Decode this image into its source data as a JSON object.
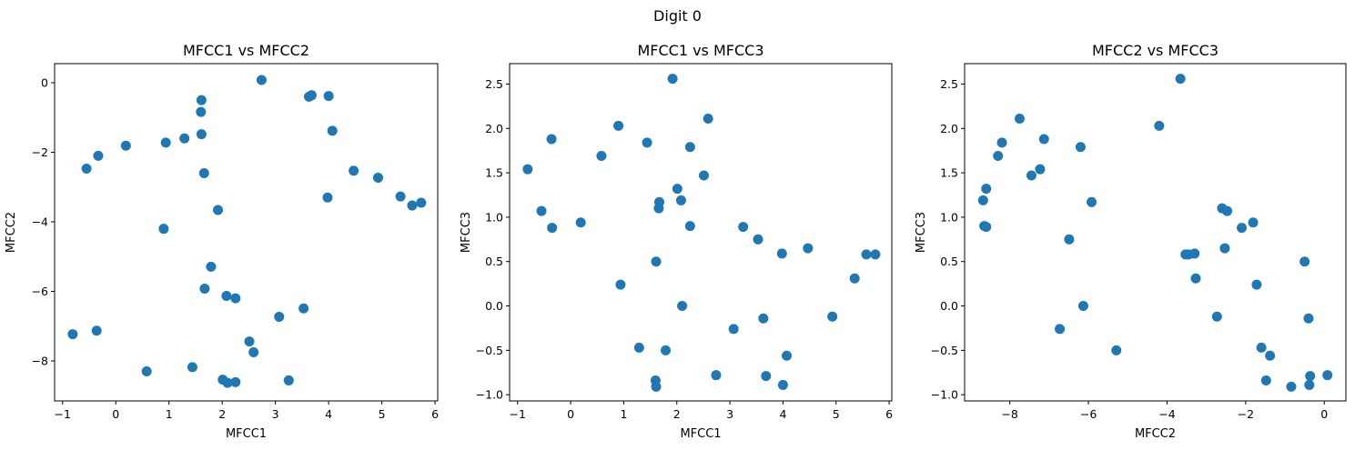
{
  "figure": {
    "suptitle": "Digit 0"
  },
  "colors": {
    "marker": "#1f77b4"
  },
  "chart_data": [
    {
      "type": "scatter",
      "title": "MFCC1 vs MFCC2",
      "xlabel": "MFCC1",
      "ylabel": "MFCC2",
      "xlim": [
        -1.15,
        6.05
      ],
      "ylim": [
        -9.15,
        0.55
      ],
      "xticks": [
        -1,
        0,
        1,
        2,
        3,
        4,
        5,
        6
      ],
      "yticks": [
        0,
        -2,
        -4,
        -6,
        -8
      ],
      "grid": false,
      "points": [
        {
          "x": -0.81,
          "y": -7.23
        },
        {
          "x": -0.55,
          "y": -2.47
        },
        {
          "x": -0.36,
          "y": -7.13
        },
        {
          "x": -0.33,
          "y": -2.1
        },
        {
          "x": 0.19,
          "y": -1.81
        },
        {
          "x": 0.58,
          "y": -8.3
        },
        {
          "x": 0.9,
          "y": -4.2
        },
        {
          "x": 0.94,
          "y": -1.72
        },
        {
          "x": 1.29,
          "y": -1.6
        },
        {
          "x": 1.44,
          "y": -8.18
        },
        {
          "x": 1.6,
          "y": -0.84
        },
        {
          "x": 1.61,
          "y": -0.5
        },
        {
          "x": 1.61,
          "y": -1.48
        },
        {
          "x": 1.66,
          "y": -2.6
        },
        {
          "x": 1.67,
          "y": -5.92
        },
        {
          "x": 1.79,
          "y": -5.29
        },
        {
          "x": 1.92,
          "y": -3.66
        },
        {
          "x": 2.01,
          "y": -8.54
        },
        {
          "x": 2.08,
          "y": -6.13
        },
        {
          "x": 2.1,
          "y": -8.63
        },
        {
          "x": 2.25,
          "y": -6.2
        },
        {
          "x": 2.25,
          "y": -8.61
        },
        {
          "x": 2.51,
          "y": -7.44
        },
        {
          "x": 2.59,
          "y": -7.75
        },
        {
          "x": 2.74,
          "y": 0.08
        },
        {
          "x": 3.07,
          "y": -6.73
        },
        {
          "x": 3.25,
          "y": -8.56
        },
        {
          "x": 3.53,
          "y": -6.49
        },
        {
          "x": 3.63,
          "y": -0.4
        },
        {
          "x": 3.68,
          "y": -0.36
        },
        {
          "x": 3.98,
          "y": -3.3
        },
        {
          "x": 4.0,
          "y": -0.38
        },
        {
          "x": 4.07,
          "y": -1.38
        },
        {
          "x": 4.47,
          "y": -2.53
        },
        {
          "x": 4.93,
          "y": -2.73
        },
        {
          "x": 5.35,
          "y": -3.27
        },
        {
          "x": 5.57,
          "y": -3.53
        },
        {
          "x": 5.74,
          "y": -3.45
        }
      ]
    },
    {
      "type": "scatter",
      "title": "MFCC1 vs MFCC3",
      "xlabel": "MFCC1",
      "ylabel": "MFCC3",
      "xlim": [
        -1.15,
        6.05
      ],
      "ylim": [
        -1.07,
        2.73
      ],
      "xticks": [
        -1,
        0,
        1,
        2,
        3,
        4,
        5,
        6
      ],
      "yticks": [
        2.5,
        2.0,
        1.5,
        1.0,
        0.5,
        0.0,
        -0.5,
        -1.0
      ],
      "grid": false,
      "points": [
        {
          "x": -0.81,
          "y": 1.54
        },
        {
          "x": -0.55,
          "y": 1.07
        },
        {
          "x": -0.36,
          "y": 1.88
        },
        {
          "x": -0.35,
          "y": 0.88
        },
        {
          "x": 0.19,
          "y": 0.94
        },
        {
          "x": 0.58,
          "y": 1.69
        },
        {
          "x": 0.9,
          "y": 2.03
        },
        {
          "x": 0.94,
          "y": 0.24
        },
        {
          "x": 1.29,
          "y": -0.47
        },
        {
          "x": 1.44,
          "y": 1.84
        },
        {
          "x": 1.6,
          "y": -0.84
        },
        {
          "x": 1.61,
          "y": -0.91
        },
        {
          "x": 1.61,
          "y": 0.5
        },
        {
          "x": 1.66,
          "y": 1.1
        },
        {
          "x": 1.67,
          "y": 1.17
        },
        {
          "x": 1.79,
          "y": -0.5
        },
        {
          "x": 1.92,
          "y": 2.56
        },
        {
          "x": 2.01,
          "y": 1.32
        },
        {
          "x": 2.08,
          "y": 1.19
        },
        {
          "x": 2.1,
          "y": 0.0
        },
        {
          "x": 2.25,
          "y": 1.79
        },
        {
          "x": 2.25,
          "y": 0.9
        },
        {
          "x": 2.51,
          "y": 1.47
        },
        {
          "x": 2.59,
          "y": 2.11
        },
        {
          "x": 2.74,
          "y": -0.78
        },
        {
          "x": 3.07,
          "y": -0.26
        },
        {
          "x": 3.25,
          "y": 0.89
        },
        {
          "x": 3.53,
          "y": 0.75
        },
        {
          "x": 3.63,
          "y": -0.14
        },
        {
          "x": 3.68,
          "y": -0.79
        },
        {
          "x": 3.98,
          "y": 0.59
        },
        {
          "x": 4.0,
          "y": -0.89
        },
        {
          "x": 4.07,
          "y": -0.56
        },
        {
          "x": 4.47,
          "y": 0.65
        },
        {
          "x": 4.93,
          "y": -0.12
        },
        {
          "x": 5.35,
          "y": 0.31
        },
        {
          "x": 5.57,
          "y": 0.58
        },
        {
          "x": 5.74,
          "y": 0.58
        }
      ]
    },
    {
      "type": "scatter",
      "title": "MFCC2 vs MFCC3",
      "xlabel": "MFCC2",
      "ylabel": "MFCC3",
      "xlim": [
        -9.15,
        0.55
      ],
      "ylim": [
        -1.07,
        2.73
      ],
      "xticks": [
        -8,
        -6,
        -4,
        -2,
        0
      ],
      "yticks": [
        2.5,
        2.0,
        1.5,
        1.0,
        0.5,
        0.0,
        -0.5,
        -1.0
      ],
      "grid": false,
      "points": [
        {
          "x": -8.68,
          "y": 1.19
        },
        {
          "x": -8.65,
          "y": 0.9
        },
        {
          "x": -8.6,
          "y": 0.89
        },
        {
          "x": -8.6,
          "y": 1.32
        },
        {
          "x": -8.3,
          "y": 1.69
        },
        {
          "x": -8.2,
          "y": 1.84
        },
        {
          "x": -7.75,
          "y": 2.11
        },
        {
          "x": -7.45,
          "y": 1.47
        },
        {
          "x": -7.23,
          "y": 1.54
        },
        {
          "x": -7.13,
          "y": 1.88
        },
        {
          "x": -6.73,
          "y": -0.26
        },
        {
          "x": -6.49,
          "y": 0.75
        },
        {
          "x": -6.2,
          "y": 1.79
        },
        {
          "x": -6.13,
          "y": 0.0
        },
        {
          "x": -5.92,
          "y": 1.17
        },
        {
          "x": -5.29,
          "y": -0.5
        },
        {
          "x": -4.2,
          "y": 2.03
        },
        {
          "x": -3.66,
          "y": 2.56
        },
        {
          "x": -3.53,
          "y": 0.58
        },
        {
          "x": -3.45,
          "y": 0.58
        },
        {
          "x": -3.3,
          "y": 0.59
        },
        {
          "x": -3.27,
          "y": 0.31
        },
        {
          "x": -2.73,
          "y": -0.12
        },
        {
          "x": -2.6,
          "y": 1.1
        },
        {
          "x": -2.53,
          "y": 0.65
        },
        {
          "x": -2.47,
          "y": 1.07
        },
        {
          "x": -2.1,
          "y": 0.88
        },
        {
          "x": -1.81,
          "y": 0.94
        },
        {
          "x": -1.72,
          "y": 0.24
        },
        {
          "x": -1.6,
          "y": -0.47
        },
        {
          "x": -1.48,
          "y": -0.84
        },
        {
          "x": -1.38,
          "y": -0.56
        },
        {
          "x": -0.84,
          "y": -0.91
        },
        {
          "x": -0.5,
          "y": 0.5
        },
        {
          "x": -0.4,
          "y": -0.14
        },
        {
          "x": -0.38,
          "y": -0.89
        },
        {
          "x": -0.36,
          "y": -0.79
        },
        {
          "x": 0.08,
          "y": -0.78
        }
      ]
    }
  ]
}
